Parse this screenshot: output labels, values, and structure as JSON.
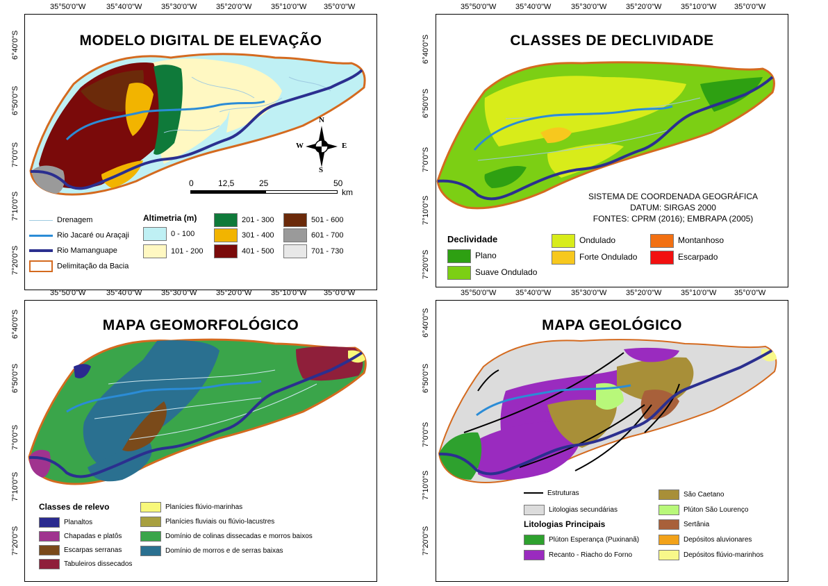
{
  "coords": {
    "lon_top": [
      "35°50'0\"W",
      "35°40'0\"W",
      "35°30'0\"W",
      "35°20'0\"W",
      "35°10'0\"W",
      "35°0'0\"W"
    ],
    "lat_left": [
      "6°40'0\"S",
      "6°50'0\"S",
      "7°0'0\"S",
      "7°10'0\"S",
      "7°20'0\"S"
    ]
  },
  "panel_tl": {
    "title": "MODELO DIGITAL DE ELEVAÇÃO",
    "scale": {
      "ticks": [
        "0",
        "12,5",
        "25",
        "50"
      ],
      "unit": "km"
    },
    "compass": {
      "n": "N",
      "s": "S",
      "e": "E",
      "w": "W"
    },
    "legend_lines": [
      {
        "label": "Drenagem",
        "color": "#9ecae1"
      },
      {
        "label": "Rio Jacaré ou Araçaji",
        "color": "#2b8cd6"
      },
      {
        "label": "Rio Mamanguape",
        "color": "#2b2f8f"
      },
      {
        "label": "Delimitação da Bacia",
        "color": "#d46a1f"
      }
    ],
    "legend_title": "Altimetria (m)",
    "classes": [
      {
        "label": "0 - 100",
        "color": "#bff0f4"
      },
      {
        "label": "101 - 200",
        "color": "#fff8c2"
      },
      {
        "label": "201 - 300",
        "color": "#0f7a3a"
      },
      {
        "label": "301 - 400",
        "color": "#f2b400"
      },
      {
        "label": "401 - 500",
        "color": "#7a0a0a"
      },
      {
        "label": "501 - 600",
        "color": "#6b2a0a"
      },
      {
        "label": "601 - 700",
        "color": "#9a9a9a"
      },
      {
        "label": "701 - 730",
        "color": "#e8e8e8"
      }
    ]
  },
  "panel_tr": {
    "title": "CLASSES DE DECLIVIDADE",
    "info": [
      "SISTEMA DE COORDENADA GEOGRÁFICA",
      "DATUM: SIRGAS 2000",
      "FONTES: CPRM (2016); EMBRAPA (2005)"
    ],
    "legend_title": "Declividade",
    "classes": [
      {
        "label": "Plano",
        "color": "#2ea012"
      },
      {
        "label": "Suave Ondulado",
        "color": "#7ccf14"
      },
      {
        "label": "Ondulado",
        "color": "#d8ec1a"
      },
      {
        "label": "Forte Ondulado",
        "color": "#f7c81e"
      },
      {
        "label": "Montanhoso",
        "color": "#f27012"
      },
      {
        "label": "Escarpado",
        "color": "#f21010"
      }
    ]
  },
  "panel_bl": {
    "title": "MAPA GEOMORFOLÓGICO",
    "legend_title": "Classes de relevo",
    "classes": [
      {
        "label": "Planaltos",
        "color": "#2a2a8f"
      },
      {
        "label": "Chapadas e platôs",
        "color": "#a0338f"
      },
      {
        "label": "Escarpas serranas",
        "color": "#7a4a1a"
      },
      {
        "label": "Tabuleiros dissecados",
        "color": "#8f1f3a"
      },
      {
        "label": "Planícies flúvio-marinhas",
        "color": "#f8f87a"
      },
      {
        "label": "Planícies fluviais ou flúvio-lacustres",
        "color": "#a8a040"
      },
      {
        "label": "Domínio de colinas dissecadas e morros baixos",
        "color": "#3aa54a"
      },
      {
        "label": "Domínio de morros e de serras baixas",
        "color": "#2a7090"
      }
    ]
  },
  "panel_br": {
    "title": "MAPA GEOLÓGICO",
    "legend_lines": [
      {
        "label": "Estruturas",
        "color": "#000000"
      }
    ],
    "legend_title": "Litologias Principais",
    "secondary": {
      "label": "Litologias secundárias",
      "color": "#dcdcdc"
    },
    "principal": [
      {
        "label": "Plúton Esperança (Puxinanã)",
        "color": "#2ea12e"
      },
      {
        "label": "Recanto - Riacho do Forno",
        "color": "#9a2bbf"
      }
    ],
    "right": [
      {
        "label": "São Caetano",
        "color": "#a88f38"
      },
      {
        "label": "Plúton São Lourenço",
        "color": "#b8f87a"
      },
      {
        "label": "Sertânia",
        "color": "#a8603a"
      },
      {
        "label": "Depósitos aluvionares",
        "color": "#f2a21a"
      },
      {
        "label": "Depósitos flúvio-marinhos",
        "color": "#f8f88a"
      }
    ]
  }
}
